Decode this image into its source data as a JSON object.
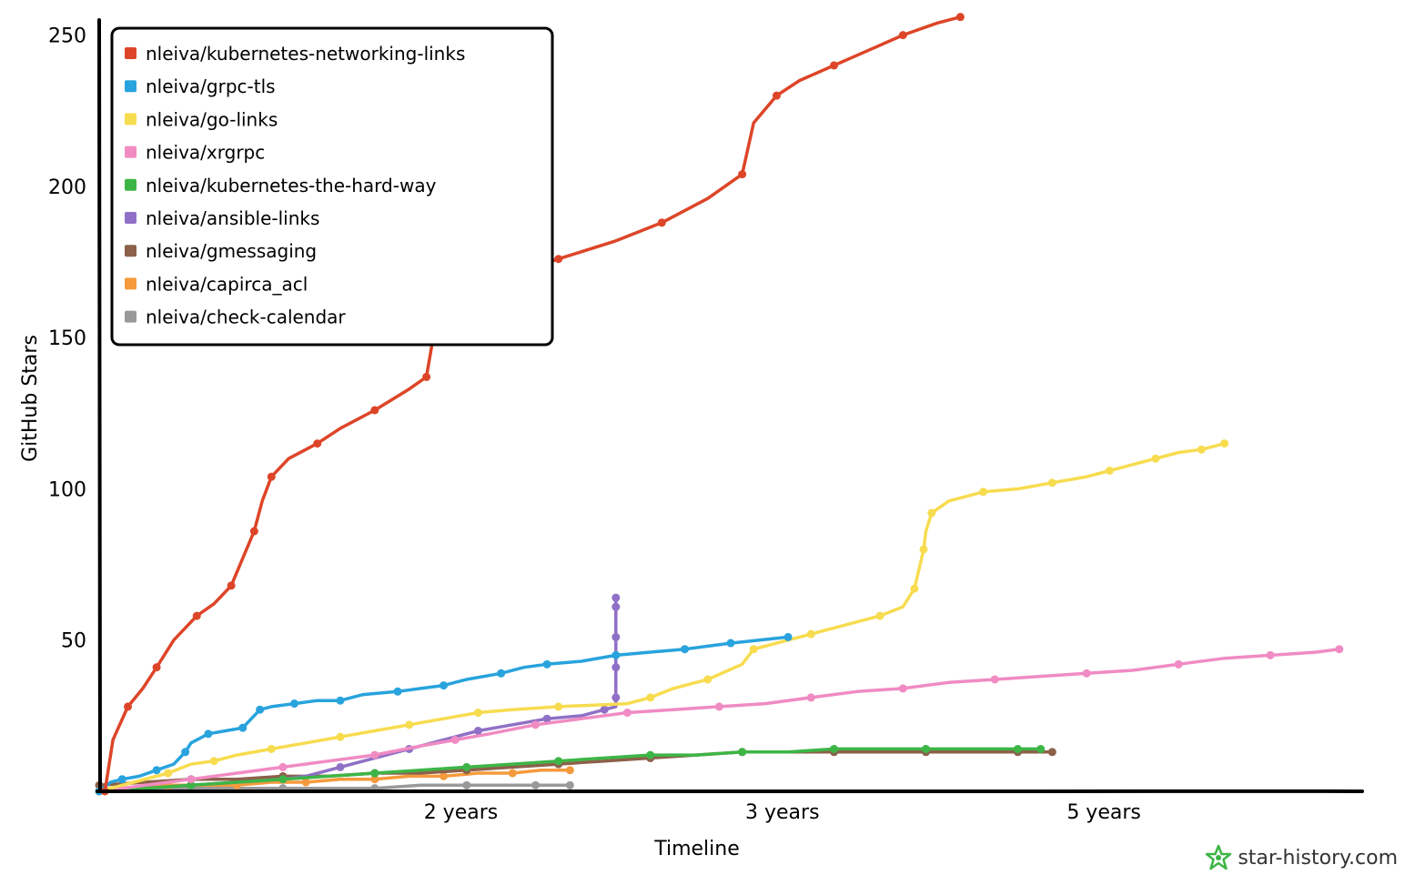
{
  "chart_data": {
    "type": "line",
    "xlabel": "Timeline",
    "ylabel": "GitHub Stars",
    "x_ticks": [
      "2 years",
      "3 years",
      "5 years"
    ],
    "y_ticks": [
      50,
      100,
      150,
      200,
      250
    ],
    "ylim": [
      0,
      255
    ],
    "legend_position": "top-left",
    "series": [
      {
        "name": "nleiva/kubernetes-networking-links",
        "color": "#dd4528",
        "points": [
          [
            0.5,
            0
          ],
          [
            1.2,
            17
          ],
          [
            2.5,
            28
          ],
          [
            3.8,
            34
          ],
          [
            5,
            41
          ],
          [
            6.5,
            50
          ],
          [
            8.5,
            58
          ],
          [
            10,
            62
          ],
          [
            11.5,
            68
          ],
          [
            12.5,
            77
          ],
          [
            13.5,
            86
          ],
          [
            14.2,
            96
          ],
          [
            15,
            104
          ],
          [
            16.5,
            110
          ],
          [
            19,
            115
          ],
          [
            21,
            120
          ],
          [
            24,
            126
          ],
          [
            27,
            133
          ],
          [
            28.5,
            137
          ],
          [
            29,
            148
          ],
          [
            29.5,
            155
          ],
          [
            31,
            160
          ],
          [
            33,
            165
          ],
          [
            36,
            171
          ],
          [
            40,
            176
          ],
          [
            45,
            182
          ],
          [
            49,
            188
          ],
          [
            53,
            196
          ],
          [
            56,
            204
          ],
          [
            57,
            221
          ],
          [
            59,
            230
          ],
          [
            61,
            235
          ],
          [
            64,
            240
          ],
          [
            67,
            245
          ],
          [
            70,
            250
          ],
          [
            73,
            254
          ],
          [
            75,
            256
          ]
        ]
      },
      {
        "name": "nleiva/grpc-tls",
        "color": "#28a3dd",
        "points": [
          [
            0,
            0
          ],
          [
            1,
            3
          ],
          [
            2,
            4
          ],
          [
            3.5,
            5
          ],
          [
            5,
            7
          ],
          [
            6.5,
            9
          ],
          [
            7.5,
            13
          ],
          [
            8,
            16
          ],
          [
            9.5,
            19
          ],
          [
            11,
            20
          ],
          [
            12.5,
            21
          ],
          [
            13.5,
            25
          ],
          [
            14,
            27
          ],
          [
            15,
            28
          ],
          [
            17,
            29
          ],
          [
            19,
            30
          ],
          [
            21,
            30
          ],
          [
            23,
            32
          ],
          [
            26,
            33
          ],
          [
            28,
            34
          ],
          [
            30,
            35
          ],
          [
            32,
            37
          ],
          [
            35,
            39
          ],
          [
            37,
            41
          ],
          [
            39,
            42
          ],
          [
            42,
            43
          ],
          [
            45,
            45
          ],
          [
            48,
            46
          ],
          [
            51,
            47
          ],
          [
            53,
            48
          ],
          [
            55,
            49
          ],
          [
            57.5,
            50
          ],
          [
            60,
            51
          ]
        ]
      },
      {
        "name": "nleiva/go-links",
        "color": "#f7dc4f",
        "points": [
          [
            0,
            0
          ],
          [
            3,
            3
          ],
          [
            6,
            6
          ],
          [
            8,
            9
          ],
          [
            10,
            10
          ],
          [
            12,
            12
          ],
          [
            15,
            14
          ],
          [
            18,
            16
          ],
          [
            21,
            18
          ],
          [
            24,
            20
          ],
          [
            27,
            22
          ],
          [
            30,
            24
          ],
          [
            33,
            26
          ],
          [
            36,
            27
          ],
          [
            40,
            28
          ],
          [
            46,
            29
          ],
          [
            48,
            31
          ],
          [
            50,
            34
          ],
          [
            53,
            37
          ],
          [
            56,
            42
          ],
          [
            57,
            47
          ],
          [
            59,
            49
          ],
          [
            62,
            52
          ],
          [
            65,
            55
          ],
          [
            68,
            58
          ],
          [
            70,
            61
          ],
          [
            71,
            67
          ],
          [
            71.5,
            75
          ],
          [
            71.8,
            80
          ],
          [
            72,
            86
          ],
          [
            72.5,
            92
          ],
          [
            74,
            96
          ],
          [
            77,
            99
          ],
          [
            80,
            100
          ],
          [
            83,
            102
          ],
          [
            86,
            104
          ],
          [
            88,
            106
          ],
          [
            90,
            108
          ],
          [
            92,
            110
          ],
          [
            94,
            112
          ],
          [
            96,
            113
          ],
          [
            97,
            114
          ],
          [
            98,
            115
          ]
        ]
      },
      {
        "name": "nleiva/xrgrpc",
        "color": "#f08bc3",
        "points": [
          [
            0,
            0
          ],
          [
            4,
            2
          ],
          [
            8,
            4
          ],
          [
            12,
            6
          ],
          [
            16,
            8
          ],
          [
            20,
            10
          ],
          [
            24,
            12
          ],
          [
            28,
            15
          ],
          [
            31,
            17
          ],
          [
            34,
            19
          ],
          [
            38,
            22
          ],
          [
            42,
            24
          ],
          [
            46,
            26
          ],
          [
            50,
            27
          ],
          [
            54,
            28
          ],
          [
            58,
            29
          ],
          [
            62,
            31
          ],
          [
            66,
            33
          ],
          [
            70,
            34
          ],
          [
            74,
            36
          ],
          [
            78,
            37
          ],
          [
            82,
            38
          ],
          [
            86,
            39
          ],
          [
            90,
            40
          ],
          [
            94,
            42
          ],
          [
            98,
            44
          ],
          [
            102,
            45
          ],
          [
            106,
            46
          ],
          [
            108,
            47
          ]
        ]
      },
      {
        "name": "nleiva/kubernetes-the-hard-way",
        "color": "#3db546",
        "points": [
          [
            0,
            0
          ],
          [
            4,
            1
          ],
          [
            8,
            2
          ],
          [
            12,
            3
          ],
          [
            16,
            4
          ],
          [
            20,
            5
          ],
          [
            24,
            6
          ],
          [
            28,
            7
          ],
          [
            32,
            8
          ],
          [
            36,
            9
          ],
          [
            40,
            10
          ],
          [
            44,
            11
          ],
          [
            48,
            12
          ],
          [
            52,
            12
          ],
          [
            56,
            13
          ],
          [
            60,
            13
          ],
          [
            64,
            14
          ],
          [
            68,
            14
          ],
          [
            72,
            14
          ],
          [
            76,
            14
          ],
          [
            80,
            14
          ],
          [
            82,
            14
          ]
        ]
      },
      {
        "name": "nleiva/ansible-links",
        "color": "#9070c6",
        "points": [
          [
            0,
            0
          ],
          [
            4,
            1
          ],
          [
            8,
            2
          ],
          [
            12,
            3
          ],
          [
            16,
            4
          ],
          [
            18,
            5
          ],
          [
            21,
            8
          ],
          [
            24,
            11
          ],
          [
            27,
            14
          ],
          [
            30,
            17
          ],
          [
            33,
            20
          ],
          [
            36,
            22
          ],
          [
            39,
            24
          ],
          [
            42,
            25
          ],
          [
            44,
            27
          ],
          [
            45,
            28
          ],
          [
            45,
            31
          ],
          [
            45,
            36
          ],
          [
            45,
            41
          ],
          [
            45,
            46
          ],
          [
            45,
            51
          ],
          [
            45,
            56
          ],
          [
            45,
            61
          ],
          [
            45,
            64
          ]
        ]
      },
      {
        "name": "nleiva/gmessaging",
        "color": "#8c604a",
        "points": [
          [
            0,
            2
          ],
          [
            4,
            3
          ],
          [
            8,
            4
          ],
          [
            12,
            4
          ],
          [
            16,
            5
          ],
          [
            20,
            5
          ],
          [
            24,
            6
          ],
          [
            28,
            6
          ],
          [
            32,
            7
          ],
          [
            36,
            8
          ],
          [
            40,
            9
          ],
          [
            44,
            10
          ],
          [
            48,
            11
          ],
          [
            52,
            12
          ],
          [
            56,
            13
          ],
          [
            60,
            13
          ],
          [
            64,
            13
          ],
          [
            68,
            13
          ],
          [
            72,
            13
          ],
          [
            76,
            13
          ],
          [
            80,
            13
          ],
          [
            83,
            13
          ]
        ]
      },
      {
        "name": "nleiva/capirca_acl",
        "color": "#f59a3c",
        "points": [
          [
            0,
            0
          ],
          [
            3,
            1
          ],
          [
            6,
            2
          ],
          [
            9,
            2
          ],
          [
            12,
            2
          ],
          [
            15,
            3
          ],
          [
            18,
            3
          ],
          [
            21,
            4
          ],
          [
            24,
            4
          ],
          [
            27,
            5
          ],
          [
            30,
            5
          ],
          [
            33,
            6
          ],
          [
            36,
            6
          ],
          [
            38.5,
            7
          ],
          [
            41,
            7
          ]
        ]
      },
      {
        "name": "nleiva/check-calendar",
        "color": "#999999",
        "points": [
          [
            0,
            0
          ],
          [
            4,
            0
          ],
          [
            8,
            1
          ],
          [
            12,
            1
          ],
          [
            16,
            1
          ],
          [
            20,
            1
          ],
          [
            24,
            1
          ],
          [
            28,
            2
          ],
          [
            32,
            2
          ],
          [
            36,
            2
          ],
          [
            38,
            2
          ],
          [
            41,
            2
          ]
        ]
      }
    ]
  },
  "watermark": {
    "text": "star-history.com",
    "icon": "star-history-logo-icon",
    "color": "#3db546"
  }
}
